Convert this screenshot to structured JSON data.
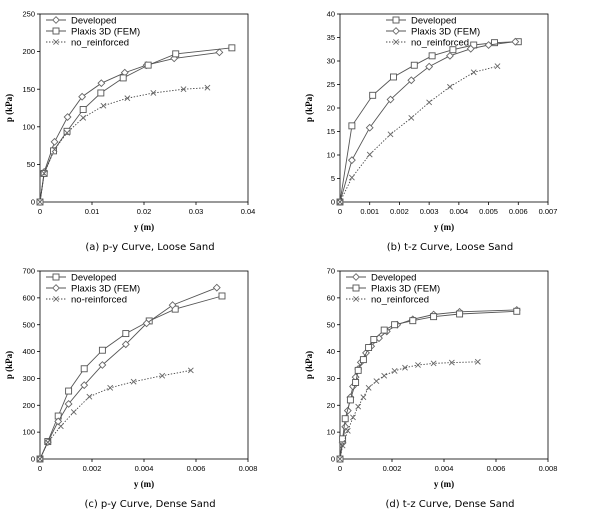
{
  "chart_data": [
    {
      "type": "line",
      "caption": "(a) p-y Curve, Loose Sand",
      "xlabel": "y (m)",
      "ylabel": "p (kPa)",
      "xlim": [
        0,
        0.04
      ],
      "ylim": [
        0,
        250
      ],
      "xticks": [
        "0",
        "0.01",
        "0.02",
        "0.03",
        "0.04"
      ],
      "yticks": [
        "0",
        "50",
        "100",
        "150",
        "200",
        "250"
      ],
      "legend_position": "top-left",
      "series": [
        {
          "name": "Developed",
          "marker": "diamond",
          "dash": "solid",
          "x": [
            0,
            0.0008,
            0.0028,
            0.0053,
            0.0081,
            0.0118,
            0.0163,
            0.0205,
            0.0258,
            0.0345
          ],
          "y": [
            0,
            40,
            80,
            113,
            140,
            158,
            172,
            182,
            191,
            199
          ]
        },
        {
          "name": "Plaxis 3D (FEM)",
          "marker": "square",
          "dash": "solid",
          "x": [
            0,
            0.0008,
            0.0026,
            0.0052,
            0.0083,
            0.0117,
            0.016,
            0.0208,
            0.0261,
            0.0369
          ],
          "y": [
            0,
            38,
            68,
            94,
            123,
            145,
            165,
            182,
            197,
            205
          ]
        },
        {
          "name": "no_reinforced",
          "marker": "x",
          "dash": "dotted",
          "x": [
            0,
            0.0008,
            0.0028,
            0.0052,
            0.0083,
            0.0122,
            0.0168,
            0.0218,
            0.0276,
            0.0322
          ],
          "y": [
            0,
            38,
            70,
            92,
            112,
            128,
            138,
            145,
            150,
            152
          ]
        }
      ]
    },
    {
      "type": "line",
      "caption": "(b) t-z Curve, Loose Sand",
      "xlabel": "y (m)",
      "ylabel": "p (kPa)",
      "xlim": [
        0,
        0.007
      ],
      "ylim": [
        0,
        40
      ],
      "xticks": [
        "0",
        "0.001",
        "0.002",
        "0.003",
        "0.004",
        "0.005",
        "0.006",
        "0.007"
      ],
      "yticks": [
        "0",
        "5",
        "10",
        "15",
        "20",
        "25",
        "30",
        "35",
        "40"
      ],
      "legend_position": "top-center",
      "series": [
        {
          "name": "Developed",
          "marker": "square",
          "dash": "solid",
          "x": [
            0,
            0.0004,
            0.0011,
            0.0018,
            0.0025,
            0.0031,
            0.0038,
            0.0045,
            0.0052,
            0.006
          ],
          "y": [
            0,
            16.2,
            22.7,
            26.6,
            29.1,
            31.1,
            32.4,
            33.4,
            33.9,
            34.1
          ]
        },
        {
          "name": "Plaxis 3D (FEM)",
          "marker": "diamond",
          "dash": "solid",
          "x": [
            0,
            0.0004,
            0.001,
            0.0017,
            0.0024,
            0.003,
            0.0037,
            0.0044,
            0.005,
            0.0059
          ],
          "y": [
            0,
            8.9,
            15.8,
            21.8,
            25.9,
            28.8,
            31.1,
            32.6,
            33.4,
            34.1
          ]
        },
        {
          "name": "no_reinforced",
          "marker": "x",
          "dash": "dotted",
          "x": [
            0,
            0.0004,
            0.001,
            0.0017,
            0.0024,
            0.003,
            0.0037,
            0.0045,
            0.0053
          ],
          "y": [
            0,
            5.2,
            10.1,
            14.4,
            17.9,
            21.2,
            24.5,
            27.6,
            28.9
          ]
        }
      ]
    },
    {
      "type": "line",
      "caption": "(c) p-y Curve, Dense Sand",
      "xlabel": "y (m)",
      "ylabel": "p (kPa)",
      "xlim": [
        0,
        0.008
      ],
      "ylim": [
        0,
        700
      ],
      "xticks": [
        "0",
        "0.002",
        "0.004",
        "0.006",
        "0.008"
      ],
      "yticks": [
        "0",
        "100",
        "200",
        "300",
        "400",
        "500",
        "600",
        "700"
      ],
      "legend_position": "top-left",
      "series": [
        {
          "name": "Developed",
          "marker": "square",
          "dash": "solid",
          "x": [
            0,
            0.0003,
            0.0007,
            0.0011,
            0.0017,
            0.0024,
            0.0033,
            0.0042,
            0.0052,
            0.007
          ],
          "y": [
            0,
            65,
            160,
            253,
            336,
            405,
            467,
            514,
            558,
            607
          ]
        },
        {
          "name": "Plaxis 3D (FEM)",
          "marker": "diamond",
          "dash": "solid",
          "x": [
            0,
            0.0003,
            0.0007,
            0.0011,
            0.0017,
            0.0024,
            0.0033,
            0.0041,
            0.0051,
            0.0068
          ],
          "y": [
            0,
            63,
            140,
            205,
            275,
            350,
            427,
            505,
            573,
            638
          ]
        },
        {
          "name": "no-reinforced",
          "marker": "x",
          "dash": "dotted",
          "x": [
            0,
            0.0003,
            0.0008,
            0.0013,
            0.0019,
            0.0027,
            0.0036,
            0.0047,
            0.0058
          ],
          "y": [
            0,
            62,
            122,
            175,
            232,
            265,
            288,
            310,
            330
          ]
        }
      ]
    },
    {
      "type": "line",
      "caption": "(d) t-z Curve, Dense Sand",
      "xlabel": "y (m)",
      "ylabel": "p (kPa)",
      "xlim": [
        0,
        0.008
      ],
      "ylim": [
        0,
        70
      ],
      "xticks": [
        "0",
        "0.002",
        "0.004",
        "0.006",
        "0.008"
      ],
      "yticks": [
        "0",
        "10",
        "20",
        "30",
        "40",
        "50",
        "60",
        "70"
      ],
      "legend_position": "top-left",
      "series": [
        {
          "name": "Developed",
          "marker": "diamond",
          "dash": "solid",
          "x": [
            0,
            0.0001,
            0.0002,
            0.0003,
            0.0004,
            0.0005,
            0.0006,
            0.0007,
            0.0008,
            0.001,
            0.0012,
            0.0015,
            0.0018,
            0.0022,
            0.0028,
            0.0036,
            0.0046,
            0.0068
          ],
          "y": [
            0,
            6,
            12,
            18,
            23,
            27,
            30.5,
            33.5,
            36,
            39.5,
            42,
            45,
            47.5,
            50,
            52,
            53.8,
            54.8,
            55.5
          ]
        },
        {
          "name": "Plaxis 3D (FEM)",
          "marker": "square",
          "dash": "solid",
          "x": [
            0,
            0.0001,
            0.0002,
            0.0004,
            0.0006,
            0.0007,
            0.0009,
            0.0011,
            0.0013,
            0.0017,
            0.0021,
            0.0028,
            0.0036,
            0.0046,
            0.0068
          ],
          "y": [
            0,
            7.5,
            15,
            22,
            28.5,
            33,
            37,
            41.5,
            44.5,
            48,
            50,
            51.5,
            53,
            54,
            55
          ]
        },
        {
          "name": "no_reinforced",
          "marker": "x",
          "dash": "dotted",
          "x": [
            0,
            0.0001,
            0.0003,
            0.0005,
            0.0007,
            0.0009,
            0.0011,
            0.0014,
            0.0017,
            0.0021,
            0.0025,
            0.003,
            0.0036,
            0.0043,
            0.0053
          ],
          "y": [
            0,
            5,
            10.5,
            15.5,
            19.5,
            23,
            26.5,
            29,
            31,
            32.8,
            34,
            35,
            35.6,
            35.9,
            36.2
          ]
        }
      ]
    }
  ]
}
